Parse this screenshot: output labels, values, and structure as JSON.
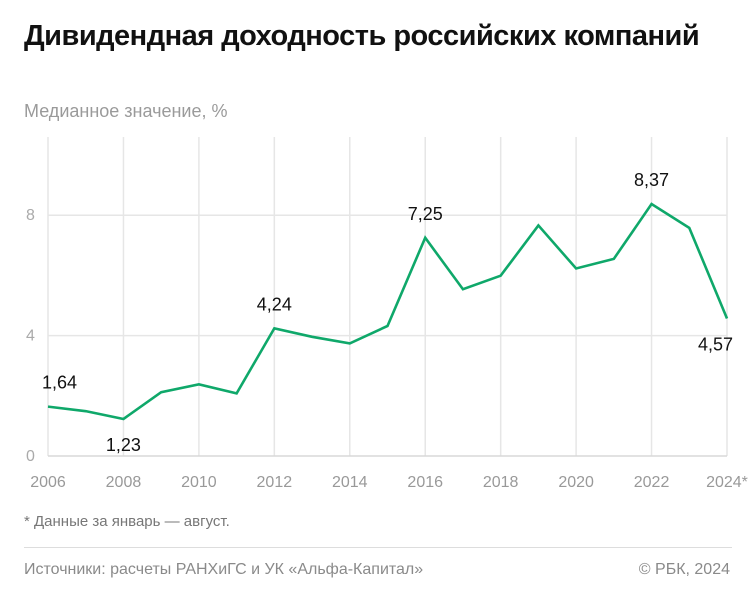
{
  "title": "Дивидендная доходность российских компаний",
  "subtitle": "Медианное значение, %",
  "note": "* Данные за январь — август.",
  "source": "Источники: расчеты РАНХиГС и УК «Альфа-Капитал»",
  "copyright": "© РБК, 2024",
  "chart_data": {
    "type": "line",
    "title": "Дивидендная доходность российских компаний",
    "subtitle": "Медианное значение, %",
    "x": [
      2006,
      2007,
      2008,
      2009,
      2010,
      2011,
      2012,
      2013,
      2014,
      2015,
      2016,
      2017,
      2018,
      2019,
      2020,
      2021,
      2022,
      2023,
      2024
    ],
    "values": [
      1.64,
      1.49,
      1.23,
      2.12,
      2.38,
      2.08,
      4.24,
      3.96,
      3.74,
      4.32,
      7.25,
      5.54,
      5.99,
      7.66,
      6.23,
      6.55,
      8.37,
      7.58,
      4.57
    ],
    "x_ticks": [
      "2006",
      "2008",
      "2010",
      "2012",
      "2014",
      "2016",
      "2018",
      "2020",
      "2022",
      "2024*"
    ],
    "y_ticks": [
      "0",
      "4",
      "8"
    ],
    "ylim": [
      0,
      10.6
    ],
    "xlim": [
      2006,
      2024
    ],
    "data_labels": [
      {
        "x": 2006,
        "text": "1,64",
        "pos": "above"
      },
      {
        "x": 2008,
        "text": "1,23",
        "pos": "below"
      },
      {
        "x": 2012,
        "text": "4,24",
        "pos": "above"
      },
      {
        "x": 2016,
        "text": "7,25",
        "pos": "above"
      },
      {
        "x": 2022,
        "text": "8,37",
        "pos": "above"
      },
      {
        "x": 2024,
        "text": "4,57",
        "pos": "below"
      }
    ],
    "grid": true,
    "line_color": "#0fa86a"
  }
}
